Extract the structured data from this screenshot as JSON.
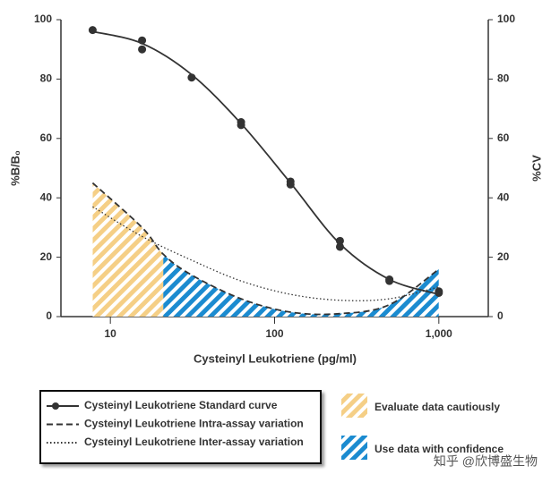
{
  "chart_data": {
    "type": "line",
    "xlabel": "Cysteinyl Leukotriene (pg/ml)",
    "ylabel": "%B/B₀",
    "y2label": "%CV",
    "xscale": "log",
    "xlim": [
      5,
      2000
    ],
    "xticks": [
      10,
      100,
      {
        "value": 1000,
        "label": "1,000"
      }
    ],
    "ylim": [
      0,
      100
    ],
    "yticks": [
      0,
      20,
      40,
      60,
      80,
      100
    ],
    "y2lim": [
      0,
      100
    ],
    "y2ticks": [
      0,
      20,
      40,
      60,
      80,
      100
    ],
    "series": [
      {
        "name": "Cysteinyl Leukotriene Standard curve",
        "color": "#333333",
        "dash": "solid",
        "marker": "circle",
        "x": [
          7.8,
          15.6,
          15.6,
          31.25,
          62.5,
          62.5,
          125,
          125,
          250,
          250,
          500,
          500,
          1000,
          1000
        ],
        "values": [
          96.5,
          93,
          90,
          80.5,
          65.5,
          64.5,
          45.5,
          44.5,
          25.5,
          23.5,
          12.5,
          12,
          8.5,
          8
        ],
        "fit_x": [
          7.8,
          15.6,
          31.25,
          62.5,
          125,
          250,
          500,
          1000
        ],
        "fit_values": [
          96,
          92,
          81.5,
          65,
          45,
          24.5,
          12.5,
          7.5
        ]
      },
      {
        "name": "Cysteinyl Leukotriene Intra-assay variation",
        "color": "#333333",
        "dash": "dashed",
        "axis": "y2",
        "x": [
          7.8,
          15.6,
          21,
          31.25,
          62.5,
          125,
          250,
          500,
          1000
        ],
        "values": [
          45,
          30,
          21,
          14,
          6,
          1.5,
          1,
          4,
          16
        ]
      },
      {
        "name": "Cysteinyl Leukotriene Inter-assay variation",
        "color": "#333333",
        "dash": "dotted",
        "axis": "y2",
        "x": [
          7.8,
          15.6,
          31.25,
          62.5,
          125,
          250,
          500,
          1000
        ],
        "values": [
          37,
          27,
          19,
          12,
          7.5,
          5.5,
          6,
          10
        ]
      }
    ],
    "regions": [
      {
        "name": "Evaluate data cautiously",
        "color": "#f5cf86",
        "x": [
          7.8,
          21
        ]
      },
      {
        "name": "Use data with confidence",
        "color": "#1b8bd0",
        "x": [
          21,
          1000
        ]
      }
    ],
    "watermark": "知乎 @欣博盛生物"
  }
}
